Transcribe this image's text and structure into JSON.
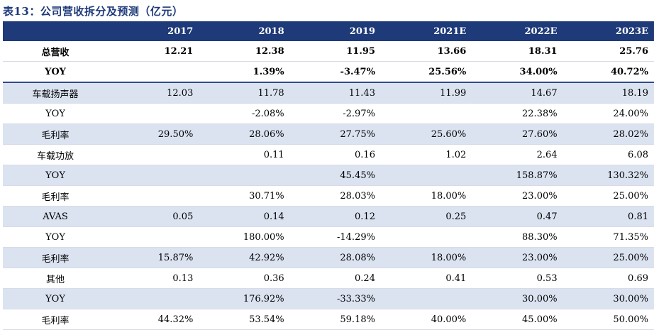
{
  "title": "表13：公司营收拆分及预测（亿元）",
  "header": [
    "",
    "2017",
    "2018",
    "2019",
    "2021E",
    "2022E",
    "2023E"
  ],
  "rows": [
    {
      "label": "总营收",
      "values": [
        "12.21",
        "12.38",
        "11.95",
        "13.66",
        "18.31",
        "25.76"
      ],
      "style": "bold"
    },
    {
      "label": "YOY",
      "values": [
        "",
        "1.39%",
        "-3.47%",
        "25.56%",
        "34.00%",
        "40.72%"
      ],
      "style": "bold2"
    },
    {
      "label": "车载扬声器",
      "values": [
        "12.03",
        "11.78",
        "11.43",
        "11.99",
        "14.67",
        "18.19"
      ],
      "style": "shade"
    },
    {
      "label": "YOY",
      "values": [
        "",
        "-2.08%",
        "-2.97%",
        "",
        "22.38%",
        "24.00%"
      ],
      "style": ""
    },
    {
      "label": "毛利率",
      "values": [
        "29.50%",
        "28.06%",
        "27.75%",
        "25.60%",
        "27.60%",
        "28.02%"
      ],
      "style": "shade"
    },
    {
      "label": "车载功放",
      "values": [
        "",
        "0.11",
        "0.16",
        "1.02",
        "2.64",
        "6.08"
      ],
      "style": ""
    },
    {
      "label": "YOY",
      "values": [
        "",
        "",
        "45.45%",
        "",
        "158.87%",
        "130.32%"
      ],
      "style": "shade"
    },
    {
      "label": "毛利率",
      "values": [
        "",
        "30.71%",
        "28.03%",
        "18.00%",
        "23.00%",
        "25.00%"
      ],
      "style": ""
    },
    {
      "label": "AVAS",
      "values": [
        "0.05",
        "0.14",
        "0.12",
        "0.25",
        "0.47",
        "0.81"
      ],
      "style": "shade"
    },
    {
      "label": "YOY",
      "values": [
        "",
        "180.00%",
        "-14.29%",
        "",
        "88.30%",
        "71.35%"
      ],
      "style": ""
    },
    {
      "label": "毛利率",
      "values": [
        "15.87%",
        "42.92%",
        "28.08%",
        "18.00%",
        "23.00%",
        "25.00%"
      ],
      "style": "shade"
    },
    {
      "label": "其他",
      "values": [
        "0.13",
        "0.36",
        "0.24",
        "0.41",
        "0.53",
        "0.69"
      ],
      "style": ""
    },
    {
      "label": "YOY",
      "values": [
        "",
        "176.92%",
        "-33.33%",
        "",
        "30.00%",
        "30.00%"
      ],
      "style": "shade"
    },
    {
      "label": "毛利率",
      "values": [
        "44.32%",
        "53.54%",
        "59.18%",
        "40.00%",
        "45.00%",
        "50.00%"
      ],
      "style": ""
    }
  ]
}
